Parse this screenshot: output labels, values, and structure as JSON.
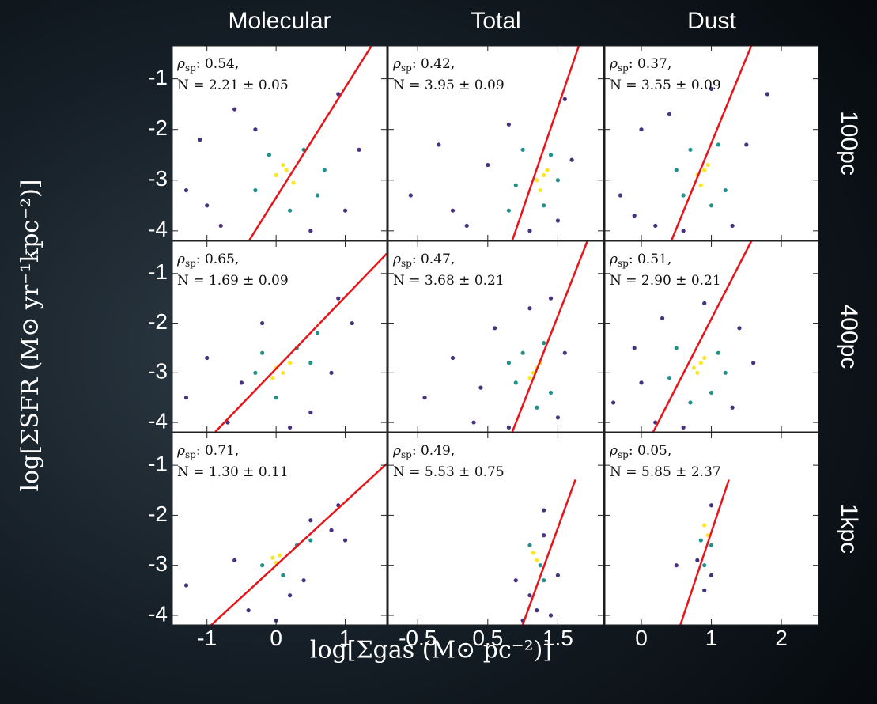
{
  "column_titles": [
    "Molecular",
    "Total",
    "Dust"
  ],
  "row_titles": [
    "100pc",
    "400pc",
    "1kpc"
  ],
  "x_label": "log[Σgas (M⊙ pc⁻²)]",
  "y_label": "log[ΣSFR (M⊙ yr⁻¹kpc⁻²)]",
  "stat_symbol": "ρ",
  "stat_subscript": "sp",
  "chart_data": [
    {
      "type": "scatter",
      "xlim": [
        -1.5,
        1.6
      ],
      "ylim": [
        -4.19,
        -0.35
      ],
      "xticks": [
        -1,
        0,
        1
      ],
      "yticks": [
        -1,
        -2,
        -3,
        -4
      ],
      "rho_label": ": 0.54,",
      "n_label": "N = 2.21 ± 0.05",
      "fit": {
        "color": "#e8141a",
        "x": [
          -0.39,
          1.38
        ],
        "y": [
          -4.19,
          -0.35
        ]
      },
      "series": [
        {
          "color": "#46327e",
          "x": [
            -1.3,
            -1.1,
            -0.8,
            -0.6,
            0.9,
            1.2,
            0.5,
            -0.3,
            1.0,
            -1.0
          ],
          "y": [
            -3.2,
            -2.2,
            -3.9,
            -1.6,
            -1.3,
            -2.4,
            -4.0,
            -2.0,
            -3.6,
            -3.5
          ]
        },
        {
          "color": "#21918c",
          "x": [
            -0.3,
            0.4,
            0.6,
            -0.1,
            0.2,
            0.7
          ],
          "y": [
            -3.2,
            -2.4,
            -3.3,
            -2.5,
            -3.6,
            -2.8
          ]
        },
        {
          "color": "#fde725",
          "x": [
            0.0,
            0.15,
            0.25,
            0.1
          ],
          "y": [
            -2.9,
            -2.8,
            -3.05,
            -2.7
          ]
        }
      ]
    },
    {
      "type": "scatter",
      "xlim": [
        -0.92,
        2.15
      ],
      "ylim": [
        -4.19,
        -0.35
      ],
      "xticks": [
        -0.5,
        0.5,
        1.5
      ],
      "yticks": [
        -1,
        -2,
        -3,
        -4
      ],
      "rho_label": ": 0.42,",
      "n_label": "N = 3.95 ± 0.09",
      "fit": {
        "color": "#e8141a",
        "x": [
          0.85,
          1.8
        ],
        "y": [
          -4.19,
          -0.35
        ]
      },
      "series": [
        {
          "color": "#46327e",
          "x": [
            -0.6,
            -0.2,
            0.2,
            0.5,
            1.6,
            1.5,
            0.8,
            1.1,
            1.7,
            0.0
          ],
          "y": [
            -3.3,
            -2.3,
            -3.9,
            -2.7,
            -1.4,
            -3.8,
            -1.9,
            -4.0,
            -2.6,
            -3.6
          ]
        },
        {
          "color": "#21918c",
          "x": [
            0.9,
            1.0,
            1.4,
            1.3,
            0.8,
            1.5
          ],
          "y": [
            -3.1,
            -2.4,
            -2.5,
            -3.5,
            -3.6,
            -3.0
          ]
        },
        {
          "color": "#fde725",
          "x": [
            1.2,
            1.3,
            1.25,
            1.35
          ],
          "y": [
            -3.0,
            -2.9,
            -3.2,
            -2.8
          ]
        }
      ]
    },
    {
      "type": "scatter",
      "xlim": [
        -0.52,
        2.53
      ],
      "ylim": [
        -4.19,
        -0.35
      ],
      "xticks": [
        0,
        1,
        2
      ],
      "yticks": [
        -1,
        -2,
        -3,
        -4
      ],
      "rho_label": ": 0.37,",
      "n_label": "N = 3.55 ± 0.09",
      "fit": {
        "color": "#e8141a",
        "x": [
          0.43,
          1.57
        ],
        "y": [
          -4.19,
          -0.35
        ]
      },
      "series": [
        {
          "color": "#46327e",
          "x": [
            -0.3,
            0.0,
            0.2,
            0.4,
            1.5,
            1.3,
            1.8,
            1.0,
            0.6,
            -0.1
          ],
          "y": [
            -3.3,
            -2.0,
            -3.9,
            -1.7,
            -2.3,
            -3.9,
            -1.3,
            -1.2,
            -4.0,
            -3.7
          ]
        },
        {
          "color": "#21918c",
          "x": [
            0.5,
            0.6,
            1.1,
            1.2,
            0.7,
            1.0
          ],
          "y": [
            -2.8,
            -3.3,
            -2.3,
            -3.2,
            -2.4,
            -3.5
          ]
        },
        {
          "color": "#fde725",
          "x": [
            0.8,
            0.9,
            0.85,
            0.95
          ],
          "y": [
            -2.9,
            -2.8,
            -3.1,
            -2.7
          ]
        }
      ]
    },
    {
      "type": "scatter",
      "xlim": [
        -1.5,
        1.6
      ],
      "ylim": [
        -4.19,
        -0.35
      ],
      "xticks": [
        -1,
        0,
        1
      ],
      "yticks": [
        -1,
        -2,
        -3,
        -4
      ],
      "rho_label": ": 0.65,",
      "n_label": "N = 1.69 ± 0.09",
      "fit": {
        "color": "#e8141a",
        "x": [
          -0.88,
          1.6
        ],
        "y": [
          -4.19,
          -0.6
        ]
      },
      "series": [
        {
          "color": "#46327e",
          "x": [
            -1.3,
            -1.0,
            -0.7,
            -0.2,
            0.9,
            1.1,
            0.5,
            0.2,
            0.8,
            -0.5
          ],
          "y": [
            -3.5,
            -2.7,
            -4.0,
            -2.0,
            -1.5,
            -2.0,
            -3.8,
            -4.1,
            -3.0,
            -3.2
          ]
        },
        {
          "color": "#21918c",
          "x": [
            -0.3,
            0.3,
            0.5,
            0.0,
            0.6,
            -0.2
          ],
          "y": [
            -3.0,
            -2.5,
            -2.8,
            -3.5,
            -2.2,
            -2.6
          ]
        },
        {
          "color": "#fde725",
          "x": [
            0.0,
            0.1,
            0.2,
            -0.05
          ],
          "y": [
            -2.9,
            -3.0,
            -2.8,
            -3.1
          ]
        }
      ]
    },
    {
      "type": "scatter",
      "xlim": [
        -0.92,
        2.15
      ],
      "ylim": [
        -4.19,
        -0.35
      ],
      "xticks": [
        -0.5,
        0.5,
        1.5
      ],
      "yticks": [
        -1,
        -2,
        -3,
        -4
      ],
      "rho_label": ": 0.47,",
      "n_label": "N = 3.68 ± 0.21",
      "fit": {
        "color": "#e8141a",
        "x": [
          0.85,
          1.92
        ],
        "y": [
          -4.19,
          -0.35
        ]
      },
      "series": [
        {
          "color": "#46327e",
          "x": [
            -0.4,
            0.0,
            0.3,
            0.6,
            1.4,
            1.5,
            0.8,
            1.6,
            0.4,
            1.1
          ],
          "y": [
            -3.5,
            -2.7,
            -4.0,
            -2.1,
            -1.5,
            -3.9,
            -4.1,
            -2.6,
            -3.3,
            -1.7
          ]
        },
        {
          "color": "#21918c",
          "x": [
            0.9,
            1.0,
            1.3,
            1.4,
            1.2,
            0.8
          ],
          "y": [
            -3.2,
            -2.6,
            -2.4,
            -3.4,
            -3.7,
            -2.8
          ]
        },
        {
          "color": "#fde725",
          "x": [
            1.15,
            1.2,
            1.1,
            1.25
          ],
          "y": [
            -3.0,
            -2.9,
            -3.1,
            -2.8
          ]
        }
      ]
    },
    {
      "type": "scatter",
      "xlim": [
        -0.52,
        2.53
      ],
      "ylim": [
        -4.19,
        -0.35
      ],
      "xticks": [
        0,
        1,
        2
      ],
      "yticks": [
        -1,
        -2,
        -3,
        -4
      ],
      "rho_label": ": 0.51,",
      "n_label": "N = 2.90 ± 0.21",
      "fit": {
        "color": "#e8141a",
        "x": [
          0.17,
          1.57
        ],
        "y": [
          -4.19,
          -0.35
        ]
      },
      "series": [
        {
          "color": "#46327e",
          "x": [
            -0.4,
            -0.1,
            0.2,
            0.3,
            1.4,
            1.3,
            0.9,
            1.6,
            0.6,
            0.0
          ],
          "y": [
            -3.6,
            -2.5,
            -4.0,
            -1.9,
            -2.1,
            -3.7,
            -1.6,
            -2.8,
            -4.1,
            -3.2
          ]
        },
        {
          "color": "#21918c",
          "x": [
            0.4,
            0.5,
            1.1,
            1.0,
            0.7,
            1.2
          ],
          "y": [
            -3.1,
            -2.5,
            -2.6,
            -3.4,
            -3.6,
            -3.0
          ]
        },
        {
          "color": "#fde725",
          "x": [
            0.75,
            0.85,
            0.8,
            0.9
          ],
          "y": [
            -2.9,
            -2.8,
            -3.0,
            -2.7
          ]
        }
      ]
    },
    {
      "type": "scatter",
      "xlim": [
        -1.5,
        1.6
      ],
      "ylim": [
        -4.19,
        -0.35
      ],
      "xticks": [
        -1,
        0,
        1
      ],
      "yticks": [
        -1,
        -2,
        -3,
        -4
      ],
      "rho_label": ": 0.71,",
      "n_label": "N = 1.30 ± 0.11",
      "fit": {
        "color": "#e8141a",
        "x": [
          -0.96,
          1.6
        ],
        "y": [
          -4.22,
          -0.97
        ]
      },
      "series": [
        {
          "color": "#46327e",
          "x": [
            -1.3,
            -0.6,
            -0.4,
            0.2,
            0.5,
            0.9,
            0.8,
            0.0,
            0.4,
            1.0
          ],
          "y": [
            -3.4,
            -2.9,
            -3.9,
            -3.6,
            -2.1,
            -1.8,
            -2.3,
            -4.1,
            -3.3,
            -2.5
          ]
        },
        {
          "color": "#21918c",
          "x": [
            -0.2,
            0.3,
            0.5,
            0.1
          ],
          "y": [
            -3.0,
            -2.6,
            -2.5,
            -3.2
          ]
        },
        {
          "color": "#fde725",
          "x": [
            -0.05,
            0.05,
            0.0
          ],
          "y": [
            -2.85,
            -2.8,
            -2.95
          ]
        }
      ]
    },
    {
      "type": "scatter",
      "xlim": [
        -0.92,
        2.15
      ],
      "ylim": [
        -4.19,
        -0.35
      ],
      "xticks": [
        -0.5,
        0.5,
        1.5
      ],
      "yticks": [
        -1,
        -2,
        -3,
        -4
      ],
      "rho_label": ": 0.49,",
      "n_label": "N = 5.53 ± 0.75",
      "fit": {
        "color": "#e8141a",
        "x": [
          0.99,
          1.75
        ],
        "y": [
          -4.22,
          -1.29
        ]
      },
      "series": [
        {
          "color": "#46327e",
          "x": [
            1.0,
            1.1,
            1.3,
            1.4,
            0.9,
            1.3,
            1.2,
            1.5
          ],
          "y": [
            -4.1,
            -3.6,
            -1.9,
            -4.0,
            -3.3,
            -2.4,
            -3.9,
            -3.2
          ]
        },
        {
          "color": "#21918c",
          "x": [
            1.1,
            1.25,
            1.3
          ],
          "y": [
            -2.6,
            -3.0,
            -3.3
          ]
        },
        {
          "color": "#fde725",
          "x": [
            1.15,
            1.2
          ],
          "y": [
            -2.75,
            -2.9
          ]
        }
      ]
    },
    {
      "type": "scatter",
      "xlim": [
        -0.52,
        2.53
      ],
      "ylim": [
        -4.19,
        -0.35
      ],
      "xticks": [
        0,
        1,
        2
      ],
      "yticks": [
        -1,
        -2,
        -3,
        -4
      ],
      "rho_label": ": 0.05,",
      "n_label": "N = 5.85 ± 2.37",
      "fit": {
        "color": "#e8141a",
        "x": [
          0.55,
          1.25
        ],
        "y": [
          -4.22,
          -1.29
        ]
      },
      "series": [
        {
          "color": "#46327e",
          "x": [
            0.5,
            0.8,
            1.0,
            1.0,
            0.9
          ],
          "y": [
            -3.0,
            -2.9,
            -3.2,
            -1.8,
            -3.5
          ]
        },
        {
          "color": "#21918c",
          "x": [
            0.85,
            1.0,
            0.9
          ],
          "y": [
            -2.5,
            -2.6,
            -3.0
          ]
        },
        {
          "color": "#fde725",
          "x": [
            0.9,
            0.95
          ],
          "y": [
            -2.2,
            -2.4
          ]
        }
      ]
    }
  ]
}
